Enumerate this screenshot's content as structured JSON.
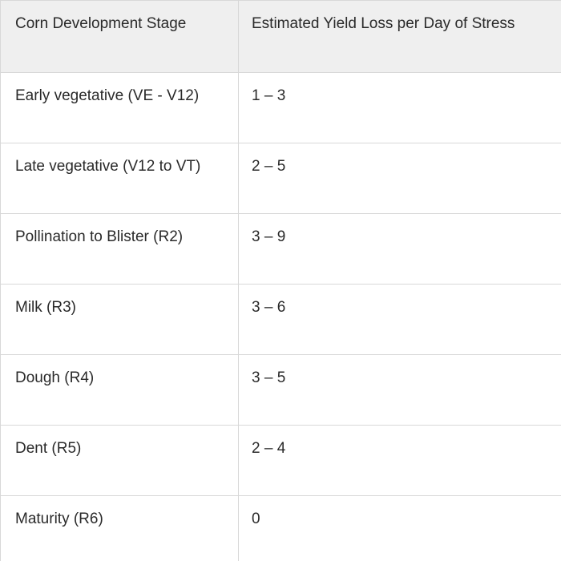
{
  "table": {
    "headers": [
      "Corn Development Stage",
      "Estimated Yield Loss per Day of Stress"
    ],
    "rows": [
      {
        "stage": "Early vegetative (VE - V12)",
        "loss": "1 – 3"
      },
      {
        "stage": "Late vegetative (V12 to VT)",
        "loss": "2 – 5"
      },
      {
        "stage": "Pollination to Blister (R2)",
        "loss": "3 – 9"
      },
      {
        "stage": "Milk (R3)",
        "loss": "3 – 6"
      },
      {
        "stage": "Dough (R4)",
        "loss": "3 – 5"
      },
      {
        "stage": "Dent (R5)",
        "loss": "2 – 4"
      },
      {
        "stage": "Maturity (R6)",
        "loss": "0"
      }
    ]
  },
  "colors": {
    "header_bg": "#efefef",
    "border": "#d8d8d8",
    "text": "#2a2a2a"
  }
}
